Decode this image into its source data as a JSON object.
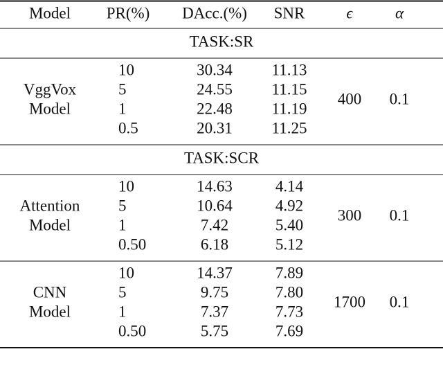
{
  "table": {
    "header": [
      "Model",
      "PR(%)",
      "DAcc.(%)",
      "SNR",
      "ϵ",
      "α"
    ],
    "sections": [
      {
        "task": "TASK:SR",
        "groups": [
          {
            "model": [
              "VggVox",
              "Model"
            ],
            "epsilon": "400",
            "alpha": "0.1",
            "rows": [
              [
                "10",
                "30.34",
                "11.13"
              ],
              [
                "5",
                "24.55",
                "11.15"
              ],
              [
                "1",
                "22.48",
                "11.19"
              ],
              [
                "0.5",
                "20.31",
                "11.25"
              ]
            ]
          }
        ]
      },
      {
        "task": "TASK:SCR",
        "groups": [
          {
            "model": [
              "Attention",
              "Model"
            ],
            "epsilon": "300",
            "alpha": "0.1",
            "rows": [
              [
                "10",
                "14.63",
                "4.14"
              ],
              [
                "5",
                "10.64",
                "4.92"
              ],
              [
                "1",
                "7.42",
                "5.40"
              ],
              [
                "0.50",
                "6.18",
                "5.12"
              ]
            ]
          },
          {
            "model": [
              "CNN",
              "Model"
            ],
            "epsilon": "1700",
            "alpha": "0.1",
            "rows": [
              [
                "10",
                "14.37",
                "7.89"
              ],
              [
                "5",
                "9.75",
                "7.80"
              ],
              [
                "1",
                "7.37",
                "7.73"
              ],
              [
                "0.50",
                "5.75",
                "7.69"
              ]
            ]
          }
        ]
      }
    ]
  }
}
